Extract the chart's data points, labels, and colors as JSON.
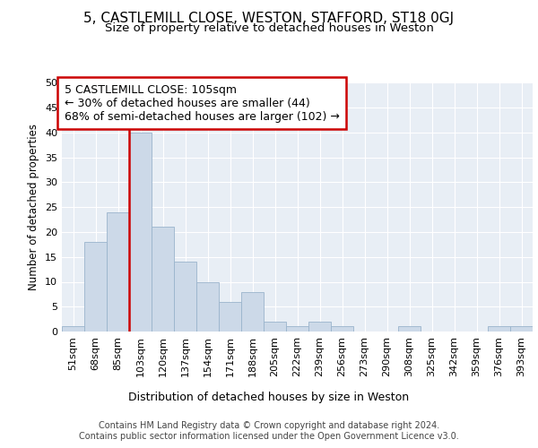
{
  "title1": "5, CASTLEMILL CLOSE, WESTON, STAFFORD, ST18 0GJ",
  "title2": "Size of property relative to detached houses in Weston",
  "xlabel": "Distribution of detached houses by size in Weston",
  "ylabel": "Number of detached properties",
  "footnote1": "Contains HM Land Registry data © Crown copyright and database right 2024.",
  "footnote2": "Contains public sector information licensed under the Open Government Licence v3.0.",
  "categories": [
    "51sqm",
    "68sqm",
    "85sqm",
    "103sqm",
    "120sqm",
    "137sqm",
    "154sqm",
    "171sqm",
    "188sqm",
    "205sqm",
    "222sqm",
    "239sqm",
    "256sqm",
    "273sqm",
    "290sqm",
    "308sqm",
    "325sqm",
    "342sqm",
    "359sqm",
    "376sqm",
    "393sqm"
  ],
  "values": [
    1,
    18,
    24,
    40,
    21,
    14,
    10,
    6,
    8,
    2,
    1,
    2,
    1,
    0,
    0,
    1,
    0,
    0,
    0,
    1,
    1
  ],
  "bar_color": "#ccd9e8",
  "bar_edge_color": "#9ab4cc",
  "vline_x": 2.5,
  "vline_color": "#cc0000",
  "annotation_title": "5 CASTLEMILL CLOSE: 105sqm",
  "annotation_line1": "← 30% of detached houses are smaller (44)",
  "annotation_line2": "68% of semi-detached houses are larger (102) →",
  "annotation_box_color": "#ffffff",
  "annotation_box_edge": "#cc0000",
  "ylim": [
    0,
    50
  ],
  "yticks": [
    0,
    5,
    10,
    15,
    20,
    25,
    30,
    35,
    40,
    45,
    50
  ],
  "bg_color": "#e8eef5",
  "grid_color": "#ffffff",
  "title1_fontsize": 11,
  "title2_fontsize": 9.5,
  "xlabel_fontsize": 9,
  "ylabel_fontsize": 8.5,
  "tick_fontsize": 8,
  "footnote_fontsize": 7,
  "annotation_fontsize": 9
}
